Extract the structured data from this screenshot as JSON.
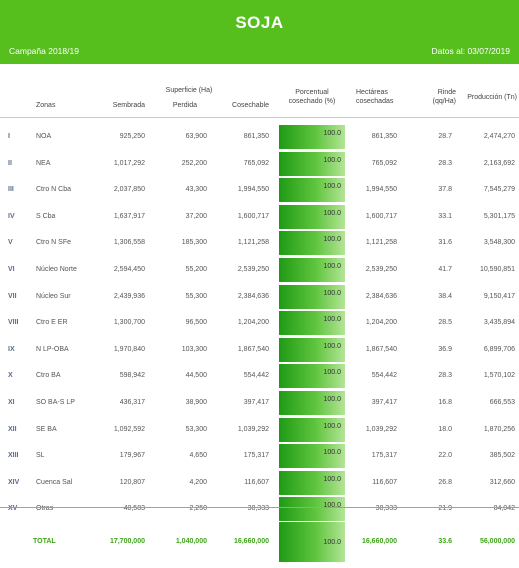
{
  "header": {
    "title": "SOJA",
    "campaign": "Campaña 2018/19",
    "date": "Datos al: 03/07/2019"
  },
  "columns": {
    "zonas": "Zonas",
    "superficie": "Superficie (Ha)",
    "sembrada": "Sembrada",
    "perdida": "Perdida",
    "cosechable": "Cosechable",
    "porcentual": "Porcentual",
    "porcentual2": "cosechado (%)",
    "hectareas": "Hectáreas",
    "hectareas2": "cosechadas",
    "rinde": "Rinde",
    "rinde2": "(qq/Ha)",
    "produccion": "Producción (Tn)"
  },
  "rows": [
    {
      "idx": "I",
      "zona": "NOA",
      "sembrada": "925,250",
      "perdida": "63,900",
      "cosechable": "861,350",
      "pct": "100.0",
      "cosechadas": "861,350",
      "rinde": "28.7",
      "produccion": "2,474,270"
    },
    {
      "idx": "II",
      "zona": "NEA",
      "sembrada": "1,017,292",
      "perdida": "252,200",
      "cosechable": "765,092",
      "pct": "100.0",
      "cosechadas": "765,092",
      "rinde": "28.3",
      "produccion": "2,163,692"
    },
    {
      "idx": "III",
      "zona": "Ctro N Cba",
      "sembrada": "2,037,850",
      "perdida": "43,300",
      "cosechable": "1,994,550",
      "pct": "100.0",
      "cosechadas": "1,994,550",
      "rinde": "37.8",
      "produccion": "7,545,279"
    },
    {
      "idx": "IV",
      "zona": "S Cba",
      "sembrada": "1,637,917",
      "perdida": "37,200",
      "cosechable": "1,600,717",
      "pct": "100.0",
      "cosechadas": "1,600,717",
      "rinde": "33.1",
      "produccion": "5,301,175"
    },
    {
      "idx": "V",
      "zona": "Ctro N SFe",
      "sembrada": "1,306,558",
      "perdida": "185,300",
      "cosechable": "1,121,258",
      "pct": "100.0",
      "cosechadas": "1,121,258",
      "rinde": "31.6",
      "produccion": "3,548,300"
    },
    {
      "idx": "VI",
      "zona": "Núcleo Norte",
      "sembrada": "2,594,450",
      "perdida": "55,200",
      "cosechable": "2,539,250",
      "pct": "100.0",
      "cosechadas": "2,539,250",
      "rinde": "41.7",
      "produccion": "10,590,851"
    },
    {
      "idx": "VII",
      "zona": "Núcleo Sur",
      "sembrada": "2,439,936",
      "perdida": "55,300",
      "cosechable": "2,384,636",
      "pct": "100.0",
      "cosechadas": "2,384,636",
      "rinde": "38.4",
      "produccion": "9,150,417"
    },
    {
      "idx": "VIII",
      "zona": "Ctro E ER",
      "sembrada": "1,300,700",
      "perdida": "96,500",
      "cosechable": "1,204,200",
      "pct": "100.0",
      "cosechadas": "1,204,200",
      "rinde": "28.5",
      "produccion": "3,435,894"
    },
    {
      "idx": "IX",
      "zona": "N LP-OBA",
      "sembrada": "1,970,840",
      "perdida": "103,300",
      "cosechable": "1,867,540",
      "pct": "100.0",
      "cosechadas": "1,867,540",
      "rinde": "36.9",
      "produccion": "6,899,706"
    },
    {
      "idx": "X",
      "zona": "Ctro BA",
      "sembrada": "598,942",
      "perdida": "44,500",
      "cosechable": "554,442",
      "pct": "100.0",
      "cosechadas": "554,442",
      "rinde": "28.3",
      "produccion": "1,570,102"
    },
    {
      "idx": "XI",
      "zona": "SO BA-S LP",
      "sembrada": "436,317",
      "perdida": "38,900",
      "cosechable": "397,417",
      "pct": "100.0",
      "cosechadas": "397,417",
      "rinde": "16.8",
      "produccion": "666,553"
    },
    {
      "idx": "XII",
      "zona": "SE BA",
      "sembrada": "1,092,592",
      "perdida": "53,300",
      "cosechable": "1,039,292",
      "pct": "100.0",
      "cosechadas": "1,039,292",
      "rinde": "18.0",
      "produccion": "1,870,256"
    },
    {
      "idx": "XIII",
      "zona": "SL",
      "sembrada": "179,967",
      "perdida": "4,650",
      "cosechable": "175,317",
      "pct": "100.0",
      "cosechadas": "175,317",
      "rinde": "22.0",
      "produccion": "385,502"
    },
    {
      "idx": "XIV",
      "zona": "Cuenca Sal",
      "sembrada": "120,807",
      "perdida": "4,200",
      "cosechable": "116,607",
      "pct": "100.0",
      "cosechadas": "116,607",
      "rinde": "26.8",
      "produccion": "312,660"
    },
    {
      "idx": "XV",
      "zona": "Otras",
      "sembrada": "40,583",
      "perdida": "2,250",
      "cosechable": "38,333",
      "pct": "100.0",
      "cosechadas": "38,333",
      "rinde": "21.9",
      "produccion": "84,042"
    }
  ],
  "total": {
    "label": "TOTAL",
    "sembrada": "17,700,000",
    "perdida": "1,040,000",
    "cosechable": "16,660,000",
    "pct": "100.0",
    "cosechadas": "16,660,000",
    "rinde": "33.6",
    "produccion": "56,000,000"
  },
  "colors": {
    "brand_green": "#56bf1e",
    "total_text": "#3ea418",
    "bar_dark": "#1f9a16",
    "bar_light": "#b3e597"
  }
}
